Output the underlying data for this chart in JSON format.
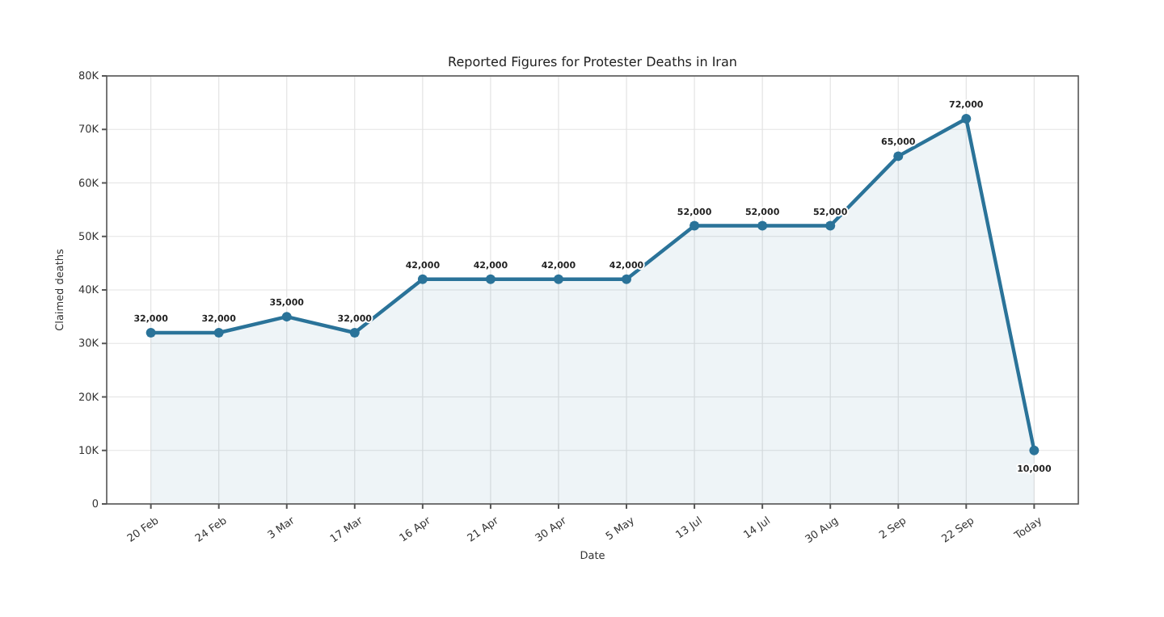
{
  "chart_data": {
    "type": "area",
    "title": "Reported Figures for Protester Deaths in Iran",
    "xlabel": "Date",
    "ylabel": "Claimed deaths",
    "categories": [
      "20 Feb",
      "24 Feb",
      "3 Mar",
      "17 Mar",
      "16 Apr",
      "21 Apr",
      "30 Apr",
      "5 May",
      "13 Jul",
      "14 Jul",
      "30 Aug",
      "2 Sep",
      "22 Sep",
      "Today"
    ],
    "values": [
      32000,
      32000,
      35000,
      32000,
      42000,
      42000,
      42000,
      42000,
      52000,
      52000,
      52000,
      65000,
      72000,
      10000
    ],
    "value_labels": [
      "32,000",
      "32,000",
      "35,000",
      "32,000",
      "42,000",
      "42,000",
      "42,000",
      "42,000",
      "52,000",
      "52,000",
      "52,000",
      "65,000",
      "72,000",
      "10,000"
    ],
    "color": "#2a7399",
    "ylim": [
      0,
      80000
    ],
    "yticks": [
      {
        "value": 0,
        "label": "0"
      },
      {
        "value": 10000,
        "label": "10K"
      },
      {
        "value": 20000,
        "label": "20K"
      },
      {
        "value": 30000,
        "label": "30K"
      },
      {
        "value": 40000,
        "label": "40K"
      },
      {
        "value": 50000,
        "label": "50K"
      },
      {
        "value": 60000,
        "label": "60K"
      },
      {
        "value": 70000,
        "label": "70K"
      },
      {
        "value": 80000,
        "label": "80K"
      }
    ],
    "grid": true,
    "marker": "circle",
    "line_style": "solid"
  }
}
